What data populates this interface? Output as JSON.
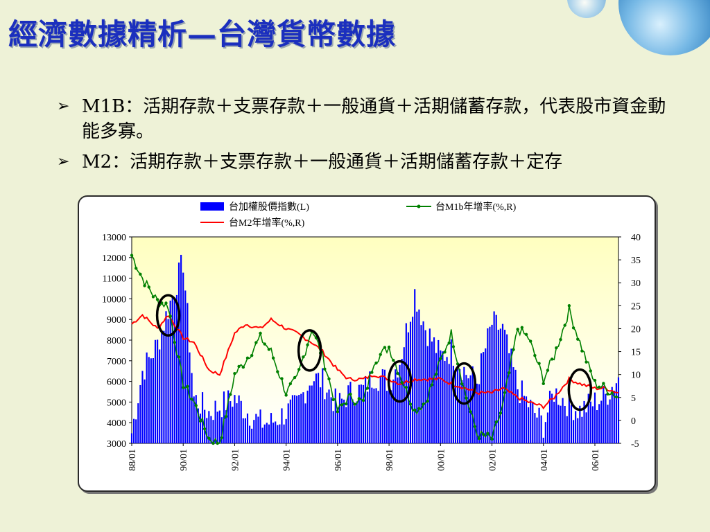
{
  "slide": {
    "title": "經濟數據精析—台灣貨幣數據",
    "bullets": [
      {
        "arrow": "➢",
        "term": "M1B：",
        "text": "活期存款＋支票存款＋一般通貨＋活期儲蓄存款，代表股市資金動能多寡。"
      },
      {
        "arrow": "➢",
        "term": "M2：",
        "text": "活期存款＋支票存款＋一般通貨＋活期儲蓄存款＋定存"
      }
    ]
  },
  "colors": {
    "bar": "#0000ff",
    "m1b": "#008000",
    "m2": "#ff0000",
    "plot_bg_top": "#ffffcc",
    "circle": "#000000"
  },
  "chart_data": {
    "type": "bar+line",
    "legend": [
      "台加權股價指數(L)",
      "台M1b年增率(%,R)",
      "台M2年增率(%,R)"
    ],
    "x_tick_labels": [
      "88/01",
      "90/01",
      "92/01",
      "94/01",
      "96/01",
      "98/01",
      "00/01",
      "02/01",
      "04/01",
      "06/01"
    ],
    "x_range": [
      "88/01",
      "06/12"
    ],
    "y_left": {
      "ylim": [
        3000,
        13000
      ],
      "ticks": [
        13000,
        12000,
        11000,
        10000,
        9000,
        8000,
        7000,
        6000,
        5000,
        4000,
        3000
      ]
    },
    "y_right": {
      "ylim": [
        -5,
        40
      ],
      "ticks": [
        40,
        35,
        30,
        25,
        20,
        15,
        10,
        5,
        0,
        -5
      ]
    },
    "series": [
      {
        "name": "台加權股價指數(L)",
        "axis": "left",
        "kind": "bar",
        "x": [
          "88/01",
          "88/06",
          "89/01",
          "89/06",
          "90/01",
          "90/06",
          "91/01",
          "91/06",
          "92/01",
          "92/06",
          "93/01",
          "93/06",
          "94/01",
          "94/06",
          "95/01",
          "95/06",
          "96/01",
          "96/06",
          "97/01",
          "97/06",
          "98/01",
          "98/06",
          "99/01",
          "99/06",
          "00/01",
          "00/06",
          "01/01",
          "01/06",
          "02/01",
          "02/06",
          "03/01",
          "03/06",
          "04/01",
          "04/06",
          "05/01",
          "05/06",
          "06/01",
          "06/06",
          "06/12"
        ],
        "values": [
          3500,
          6500,
          7800,
          9500,
          11800,
          5200,
          4500,
          4800,
          5200,
          4600,
          4000,
          4000,
          4500,
          4800,
          6200,
          6000,
          4800,
          5400,
          5600,
          6300,
          6000,
          7000,
          10300,
          8600,
          7200,
          7500,
          6400,
          6000,
          8800,
          8500,
          5700,
          4900,
          3900,
          5500,
          4900,
          4600,
          5000,
          5300,
          6200
        ]
      },
      {
        "name": "台M1b年增率(%,R)",
        "axis": "right",
        "kind": "line+marker",
        "x": [
          "88/01",
          "88/06",
          "89/01",
          "89/06",
          "90/01",
          "90/06",
          "91/01",
          "91/06",
          "92/01",
          "92/06",
          "93/01",
          "93/06",
          "94/01",
          "94/06",
          "95/01",
          "95/06",
          "96/01",
          "96/06",
          "97/01",
          "97/06",
          "98/01",
          "98/06",
          "99/01",
          "99/06",
          "00/01",
          "00/06",
          "01/01",
          "01/06",
          "02/01",
          "02/06",
          "03/01",
          "03/06",
          "04/01",
          "04/06",
          "05/01",
          "05/06",
          "06/01",
          "06/06",
          "06/12"
        ],
        "values": [
          36,
          31,
          26,
          25,
          8,
          4,
          -4,
          -5,
          10,
          13,
          18,
          15,
          6,
          9,
          20,
          14,
          2,
          5,
          4,
          13,
          16,
          10,
          2,
          4,
          13,
          19,
          5,
          -3,
          -4,
          3,
          20,
          18,
          9,
          14,
          24,
          17,
          8,
          7,
          5
        ]
      },
      {
        "name": "台M2年增率(%,R)",
        "axis": "right",
        "kind": "line",
        "x": [
          "88/01",
          "88/06",
          "89/01",
          "89/06",
          "90/01",
          "90/06",
          "91/01",
          "91/06",
          "92/01",
          "92/06",
          "93/01",
          "93/06",
          "94/01",
          "94/06",
          "95/01",
          "95/06",
          "96/01",
          "96/06",
          "97/01",
          "97/06",
          "98/01",
          "98/06",
          "99/01",
          "99/06",
          "00/01",
          "00/06",
          "01/01",
          "01/06",
          "02/01",
          "02/06",
          "03/01",
          "03/06",
          "04/01",
          "04/06",
          "05/01",
          "05/06",
          "06/01",
          "06/06",
          "06/12"
        ],
        "values": [
          21,
          23,
          20,
          23,
          18,
          17,
          11,
          10,
          19,
          21,
          20,
          22,
          20,
          19,
          17,
          15,
          11,
          9,
          9,
          10,
          9,
          8,
          9,
          9,
          9,
          8,
          7,
          6,
          6,
          7,
          5,
          4,
          3,
          5,
          9,
          8,
          7,
          7,
          6
        ]
      }
    ],
    "circled_points": [
      {
        "x": "89/06",
        "axis": "left",
        "value": 9200
      },
      {
        "x": "94/12",
        "axis": "left",
        "value": 7500
      },
      {
        "x": "98/06",
        "axis": "left",
        "value": 6000
      },
      {
        "x": "00/12",
        "axis": "left",
        "value": 5900
      },
      {
        "x": "05/06",
        "axis": "left",
        "value": 5600
      }
    ]
  }
}
